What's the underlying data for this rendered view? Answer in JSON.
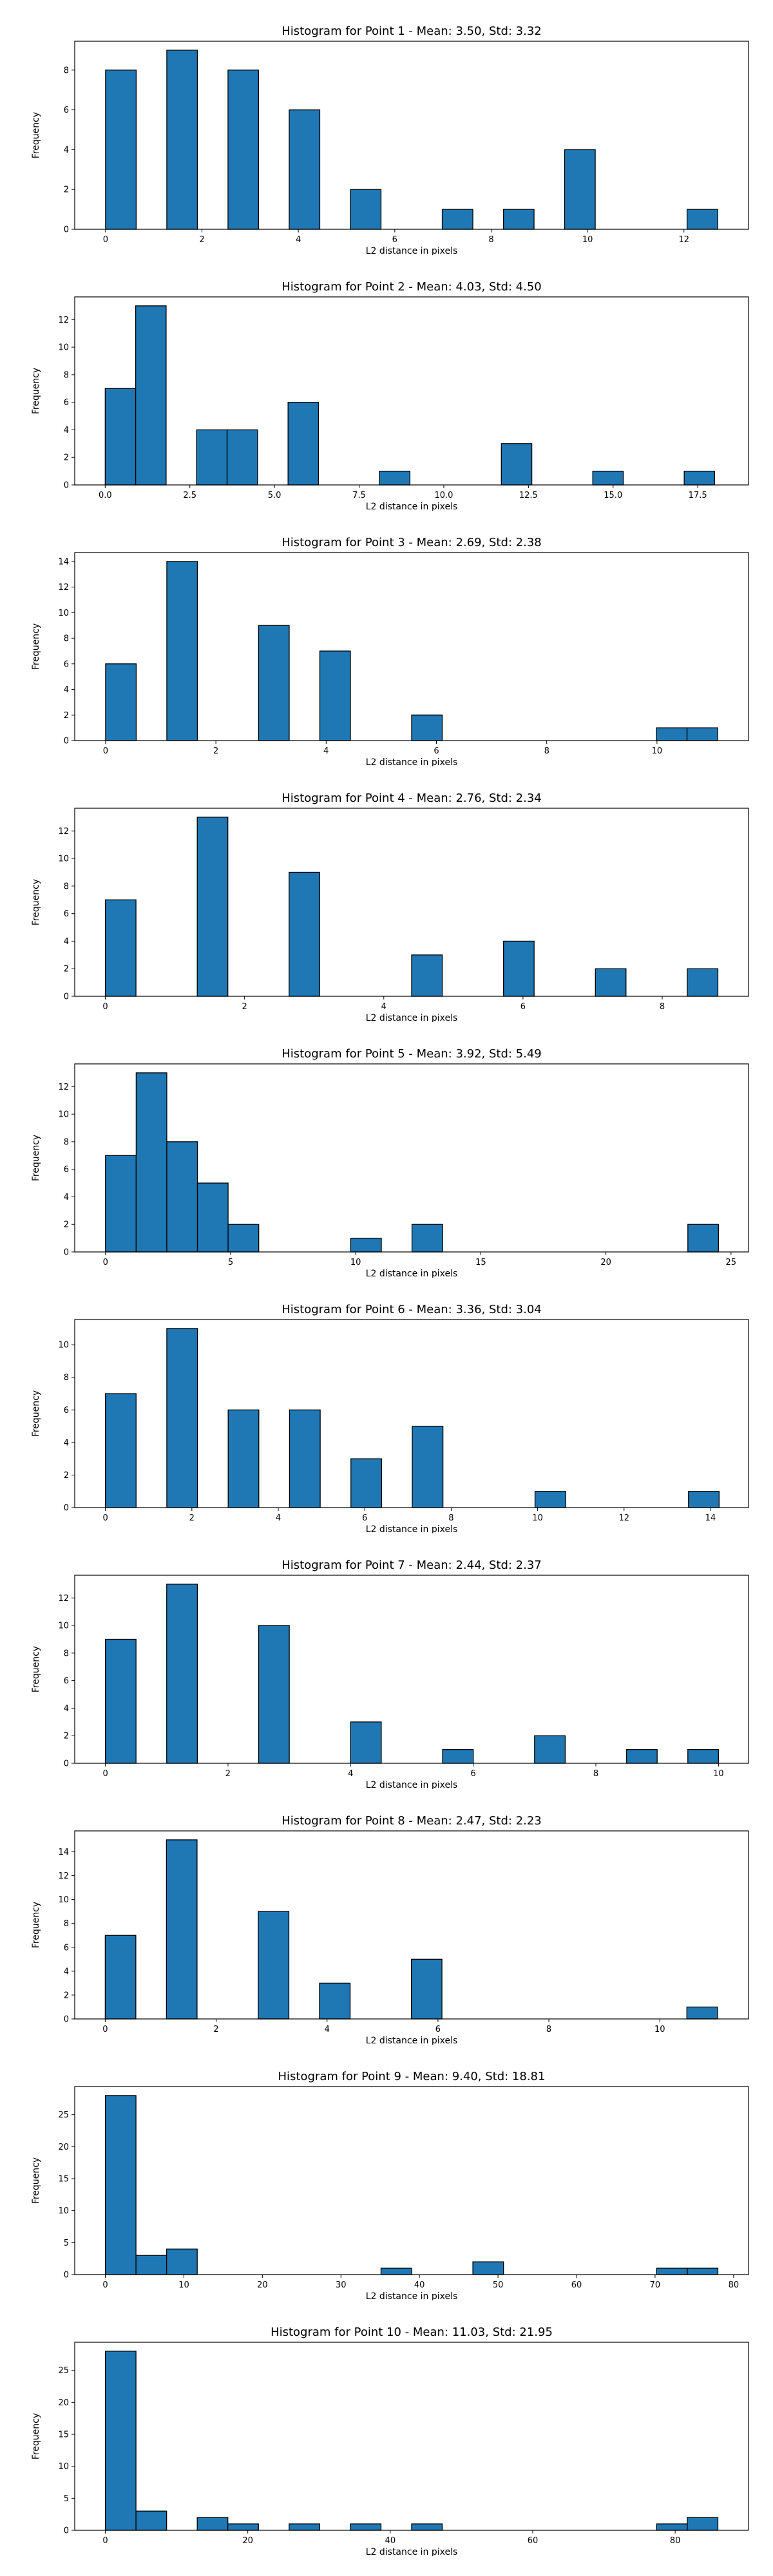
{
  "chart_data": [
    {
      "type": "bar",
      "title": "Histogram for Point 1 - Mean: 3.50, Std: 3.32",
      "xlabel": "L2 distance in pixels",
      "ylabel": "Frequency",
      "xlim": [
        -0.64,
        13.34
      ],
      "ylim": [
        0,
        9.45
      ],
      "xticks": [
        0,
        2,
        4,
        6,
        8,
        10,
        12
      ],
      "xtick_labels": [
        "0",
        "2",
        "4",
        "6",
        "8",
        "10",
        "12"
      ],
      "yticks": [
        0,
        2,
        4,
        6,
        8
      ],
      "ytick_labels": [
        "0",
        "2",
        "4",
        "6",
        "8"
      ],
      "bin_start": 0.0,
      "bin_width": 0.635,
      "values": [
        8,
        0,
        9,
        0,
        8,
        0,
        6,
        0,
        2,
        0,
        0,
        1,
        0,
        1,
        0,
        4,
        0,
        0,
        0,
        1
      ]
    },
    {
      "type": "bar",
      "title": "Histogram for Point 2 - Mean: 4.03, Std: 4.50",
      "xlabel": "L2 distance in pixels",
      "ylabel": "Frequency",
      "xlim": [
        -0.9,
        19.0
      ],
      "ylim": [
        0,
        13.65
      ],
      "xticks": [
        0,
        2.5,
        5,
        7.5,
        10,
        12.5,
        15,
        17.5
      ],
      "xtick_labels": [
        "0.0",
        "2.5",
        "5.0",
        "7.5",
        "10.0",
        "12.5",
        "15.0",
        "17.5"
      ],
      "yticks": [
        0,
        2,
        4,
        6,
        8,
        10,
        12
      ],
      "ytick_labels": [
        "0",
        "2",
        "4",
        "6",
        "8",
        "10",
        "12"
      ],
      "bin_start": 0.0,
      "bin_width": 0.9,
      "values": [
        7,
        13,
        0,
        4,
        4,
        0,
        6,
        0,
        0,
        1,
        0,
        0,
        0,
        3,
        0,
        0,
        1,
        0,
        0,
        1
      ]
    },
    {
      "type": "bar",
      "title": "Histogram for Point 3 - Mean: 2.69, Std: 2.38",
      "xlabel": "L2 distance in pixels",
      "ylabel": "Frequency",
      "xlim": [
        -0.56,
        11.66
      ],
      "ylim": [
        0,
        14.7
      ],
      "xticks": [
        0,
        2,
        4,
        6,
        8,
        10
      ],
      "xtick_labels": [
        "0",
        "2",
        "4",
        "6",
        "8",
        "10"
      ],
      "yticks": [
        0,
        2,
        4,
        6,
        8,
        10,
        12,
        14
      ],
      "ytick_labels": [
        "0",
        "2",
        "4",
        "6",
        "8",
        "10",
        "12",
        "14"
      ],
      "bin_start": 0.0,
      "bin_width": 0.555,
      "values": [
        6,
        0,
        14,
        0,
        0,
        9,
        0,
        7,
        0,
        0,
        2,
        0,
        0,
        0,
        0,
        0,
        0,
        0,
        1,
        1
      ]
    },
    {
      "type": "bar",
      "title": "Histogram for Point 4 - Mean: 2.76, Std: 2.34",
      "xlabel": "L2 distance in pixels",
      "ylabel": "Frequency",
      "xlim": [
        -0.44,
        9.24
      ],
      "ylim": [
        0,
        13.65
      ],
      "xticks": [
        0,
        2,
        4,
        6,
        8
      ],
      "xtick_labels": [
        "0",
        "2",
        "4",
        "6",
        "8"
      ],
      "yticks": [
        0,
        2,
        4,
        6,
        8,
        10,
        12
      ],
      "ytick_labels": [
        "0",
        "2",
        "4",
        "6",
        "8",
        "10",
        "12"
      ],
      "bin_start": 0.0,
      "bin_width": 0.44,
      "values": [
        7,
        0,
        0,
        13,
        0,
        0,
        9,
        0,
        0,
        0,
        3,
        0,
        0,
        4,
        0,
        0,
        2,
        0,
        0,
        2
      ]
    },
    {
      "type": "bar",
      "title": "Histogram for Point 5 - Mean: 3.92, Std: 5.49",
      "xlabel": "L2 distance in pixels",
      "ylabel": "Frequency",
      "xlim": [
        -1.23,
        25.7
      ],
      "ylim": [
        0,
        13.65
      ],
      "xticks": [
        0,
        5,
        10,
        15,
        20,
        25
      ],
      "xtick_labels": [
        "0",
        "5",
        "10",
        "15",
        "20",
        "25"
      ],
      "yticks": [
        0,
        2,
        4,
        6,
        8,
        10,
        12
      ],
      "ytick_labels": [
        "0",
        "2",
        "4",
        "6",
        "8",
        "10",
        "12"
      ],
      "bin_start": 0.0,
      "bin_width": 1.225,
      "values": [
        7,
        13,
        8,
        5,
        2,
        0,
        0,
        0,
        1,
        0,
        2,
        0,
        0,
        0,
        0,
        0,
        0,
        0,
        0,
        2
      ]
    },
    {
      "type": "bar",
      "title": "Histogram for Point 6 - Mean: 3.36, Std: 3.04",
      "xlabel": "L2 distance in pixels",
      "ylabel": "Frequency",
      "xlim": [
        -0.71,
        14.88
      ],
      "ylim": [
        0,
        11.55
      ],
      "xticks": [
        0,
        2,
        4,
        6,
        8,
        10,
        12,
        14
      ],
      "xtick_labels": [
        "0",
        "2",
        "4",
        "6",
        "8",
        "10",
        "12",
        "14"
      ],
      "yticks": [
        0,
        2,
        4,
        6,
        8,
        10
      ],
      "ytick_labels": [
        "0",
        "2",
        "4",
        "6",
        "8",
        "10"
      ],
      "bin_start": 0.0,
      "bin_width": 0.71,
      "values": [
        7,
        0,
        11,
        0,
        6,
        0,
        6,
        0,
        3,
        0,
        5,
        0,
        0,
        0,
        1,
        0,
        0,
        0,
        0,
        1
      ]
    },
    {
      "type": "bar",
      "title": "Histogram for Point 7 - Mean: 2.44, Std: 2.37",
      "xlabel": "L2 distance in pixels",
      "ylabel": "Frequency",
      "xlim": [
        -0.5,
        10.49
      ],
      "ylim": [
        0,
        13.65
      ],
      "xticks": [
        0,
        2,
        4,
        6,
        8,
        10
      ],
      "xtick_labels": [
        "0",
        "2",
        "4",
        "6",
        "8",
        "10"
      ],
      "yticks": [
        0,
        2,
        4,
        6,
        8,
        10,
        12
      ],
      "ytick_labels": [
        "0",
        "2",
        "4",
        "6",
        "8",
        "10",
        "12"
      ],
      "bin_start": 0.0,
      "bin_width": 0.5,
      "values": [
        9,
        0,
        13,
        0,
        0,
        10,
        0,
        0,
        3,
        0,
        0,
        1,
        0,
        0,
        2,
        0,
        0,
        1,
        0,
        1
      ]
    },
    {
      "type": "bar",
      "title": "Histogram for Point 8 - Mean: 2.47, Std: 2.23",
      "xlabel": "L2 distance in pixels",
      "ylabel": "Frequency",
      "xlim": [
        -0.55,
        11.6
      ],
      "ylim": [
        0,
        15.75
      ],
      "xticks": [
        0,
        2,
        4,
        6,
        8,
        10
      ],
      "xtick_labels": [
        "0",
        "2",
        "4",
        "6",
        "8",
        "10"
      ],
      "yticks": [
        0,
        2,
        4,
        6,
        8,
        10,
        12,
        14
      ],
      "ytick_labels": [
        "0",
        "2",
        "4",
        "6",
        "8",
        "10",
        "12",
        "14"
      ],
      "bin_start": 0.0,
      "bin_width": 0.552,
      "values": [
        7,
        0,
        15,
        0,
        0,
        9,
        0,
        3,
        0,
        0,
        5,
        0,
        0,
        0,
        0,
        0,
        0,
        0,
        0,
        1
      ]
    },
    {
      "type": "bar",
      "title": "Histogram for Point 9 - Mean: 9.40, Std: 18.81",
      "xlabel": "L2 distance in pixels",
      "ylabel": "Frequency",
      "xlim": [
        -3.9,
        81.9
      ],
      "ylim": [
        0,
        29.4
      ],
      "xticks": [
        0,
        10,
        20,
        30,
        40,
        50,
        60,
        70,
        80
      ],
      "xtick_labels": [
        "0",
        "10",
        "20",
        "30",
        "40",
        "50",
        "60",
        "70",
        "80"
      ],
      "yticks": [
        0,
        5,
        10,
        15,
        20,
        25
      ],
      "ytick_labels": [
        "0",
        "5",
        "10",
        "15",
        "20",
        "25"
      ],
      "bin_start": 0.0,
      "bin_width": 3.9,
      "values": [
        28,
        3,
        4,
        0,
        0,
        0,
        0,
        0,
        0,
        1,
        0,
        0,
        2,
        0,
        0,
        0,
        0,
        0,
        1,
        1
      ]
    },
    {
      "type": "bar",
      "title": "Histogram for Point 10 - Mean: 11.03, Std: 21.95",
      "xlabel": "L2 distance in pixels",
      "ylabel": "Frequency",
      "xlim": [
        -4.3,
        90.3
      ],
      "ylim": [
        0,
        29.4
      ],
      "xticks": [
        0,
        20,
        40,
        60,
        80
      ],
      "xtick_labels": [
        "0",
        "20",
        "40",
        "60",
        "80"
      ],
      "yticks": [
        0,
        5,
        10,
        15,
        20,
        25
      ],
      "ytick_labels": [
        "0",
        "5",
        "10",
        "15",
        "20",
        "25"
      ],
      "bin_start": 0.0,
      "bin_width": 4.3,
      "values": [
        28,
        3,
        0,
        2,
        1,
        0,
        1,
        0,
        1,
        0,
        1,
        0,
        0,
        0,
        0,
        0,
        0,
        0,
        1,
        2
      ]
    }
  ]
}
